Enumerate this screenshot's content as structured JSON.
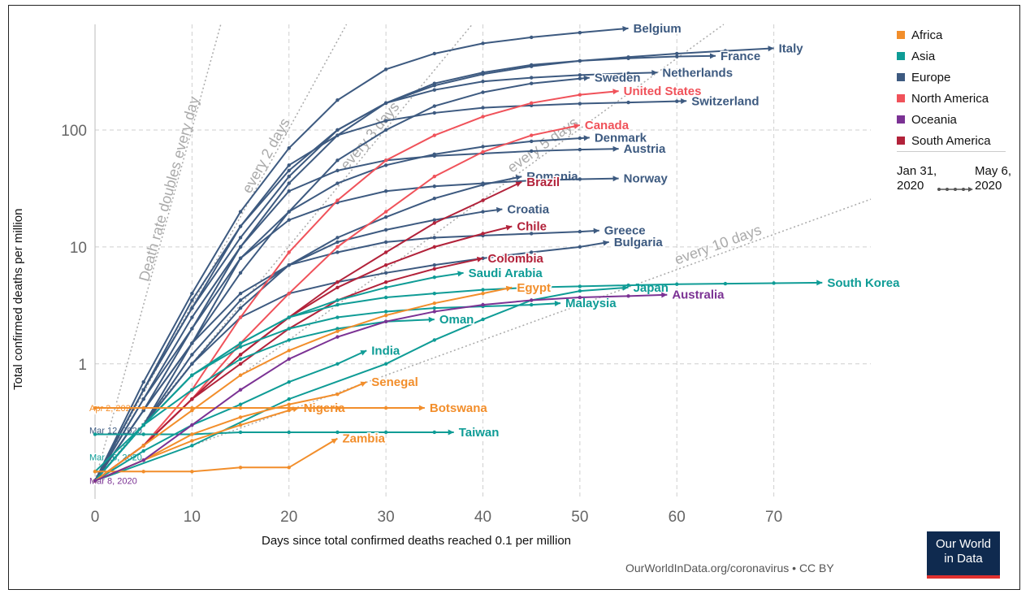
{
  "labels": {
    "ylabel": "Total confirmed deaths per million",
    "xlabel": "Days since total confirmed deaths reached 0.1 per million",
    "source": "OurWorldInData.org/coronavirus • CC BY",
    "logo_line1": "Our World",
    "logo_line2": "in Data"
  },
  "legend": [
    {
      "label": "Africa",
      "color": "#f28e2b"
    },
    {
      "label": "Asia",
      "color": "#0f9c96"
    },
    {
      "label": "Europe",
      "color": "#3d5a80"
    },
    {
      "label": "North America",
      "color": "#f0525a"
    },
    {
      "label": "Oceania",
      "color": "#7b3294"
    },
    {
      "label": "South America",
      "color": "#b2223a"
    }
  ],
  "timeline": {
    "start": "Jan 31, 2020",
    "end": "May 6, 2020"
  },
  "chart_data": {
    "type": "line",
    "yscale": "log",
    "xlim": [
      0,
      80
    ],
    "ylim": [
      0.07,
      800
    ],
    "x_ticks": [
      0,
      10,
      20,
      30,
      40,
      50,
      60,
      70
    ],
    "y_ticks": [
      {
        "v": 1,
        "label": "1"
      },
      {
        "v": 10,
        "label": "10"
      },
      {
        "v": 100,
        "label": "100"
      }
    ],
    "guides": [
      {
        "label": "Death rate doubles every day",
        "doubling": 1
      },
      {
        "label": "every 2 days",
        "doubling": 2
      },
      {
        "label": "every 3 days",
        "doubling": 3
      },
      {
        "label": "every 5 days",
        "doubling": 5
      },
      {
        "label": "every 10 days",
        "doubling": 10
      }
    ],
    "start_labels": [
      {
        "text": "Apr 2, 2020",
        "y": 0.42,
        "region": "Africa"
      },
      {
        "text": "Mar 12, 2020",
        "y": 0.27,
        "region": "Europe"
      },
      {
        "text": "Mar 16, 2020",
        "y": 0.16,
        "region": "Asia"
      },
      {
        "text": "Mar 8, 2020",
        "y": 0.1,
        "region": "Oceania"
      }
    ],
    "series": [
      {
        "name": "Belgium",
        "region": "Europe",
        "x": [
          0,
          5,
          10,
          15,
          20,
          25,
          30,
          35,
          40,
          45,
          50,
          55
        ],
        "y": [
          0.1,
          0.7,
          4,
          20,
          70,
          180,
          330,
          450,
          550,
          620,
          680,
          740
        ]
      },
      {
        "name": "Italy",
        "region": "Europe",
        "x": [
          0,
          5,
          10,
          15,
          20,
          25,
          30,
          35,
          40,
          45,
          50,
          55,
          60,
          65,
          70
        ],
        "y": [
          0.1,
          0.6,
          3.5,
          15,
          45,
          100,
          170,
          240,
          300,
          350,
          390,
          420,
          450,
          475,
          500
        ]
      },
      {
        "name": "France",
        "region": "Europe",
        "x": [
          0,
          5,
          10,
          15,
          20,
          25,
          30,
          35,
          40,
          45,
          50,
          55,
          60,
          64
        ],
        "y": [
          0.1,
          0.5,
          2.5,
          10,
          35,
          90,
          170,
          250,
          310,
          360,
          390,
          410,
          425,
          430
        ]
      },
      {
        "name": "Netherlands",
        "region": "Europe",
        "x": [
          0,
          5,
          10,
          15,
          20,
          25,
          30,
          35,
          40,
          45,
          50,
          55,
          58
        ],
        "y": [
          0.1,
          0.6,
          3,
          12,
          40,
          100,
          170,
          220,
          260,
          280,
          295,
          305,
          310
        ]
      },
      {
        "name": "Sweden",
        "region": "Europe",
        "x": [
          0,
          5,
          10,
          15,
          20,
          25,
          30,
          35,
          40,
          45,
          50,
          51
        ],
        "y": [
          0.1,
          0.4,
          1.5,
          6,
          20,
          55,
          100,
          160,
          210,
          250,
          275,
          280
        ]
      },
      {
        "name": "Switzerland",
        "region": "Europe",
        "x": [
          0,
          5,
          10,
          15,
          20,
          25,
          30,
          35,
          40,
          45,
          50,
          55,
          60,
          61
        ],
        "y": [
          0.1,
          0.6,
          3,
          15,
          50,
          90,
          120,
          140,
          155,
          162,
          168,
          172,
          176,
          177
        ]
      },
      {
        "name": "Denmark",
        "region": "Europe",
        "x": [
          0,
          5,
          10,
          15,
          20,
          25,
          30,
          35,
          40,
          45,
          50,
          51
        ],
        "y": [
          0.1,
          0.3,
          1.5,
          8,
          20,
          35,
          50,
          62,
          72,
          80,
          85,
          86
        ]
      },
      {
        "name": "Austria",
        "region": "Europe",
        "x": [
          0,
          5,
          10,
          15,
          20,
          25,
          30,
          35,
          40,
          45,
          50,
          54
        ],
        "y": [
          0.1,
          0.4,
          2,
          10,
          30,
          45,
          55,
          60,
          63,
          66,
          68,
          69
        ]
      },
      {
        "name": "Romania",
        "region": "Europe",
        "x": [
          0,
          5,
          10,
          15,
          20,
          25,
          30,
          35,
          40,
          44
        ],
        "y": [
          0.1,
          0.3,
          1,
          3,
          7,
          12,
          18,
          26,
          34,
          40
        ]
      },
      {
        "name": "Norway",
        "region": "Europe",
        "x": [
          0,
          5,
          10,
          15,
          20,
          25,
          30,
          35,
          40,
          45,
          50,
          54
        ],
        "y": [
          0.1,
          0.5,
          2,
          8,
          17,
          24,
          30,
          33,
          35,
          37,
          38,
          38.5
        ]
      },
      {
        "name": "Croatia",
        "region": "Europe",
        "x": [
          0,
          5,
          10,
          15,
          20,
          25,
          30,
          35,
          40,
          42
        ],
        "y": [
          0.1,
          0.3,
          1.2,
          3.5,
          7,
          11,
          14,
          17,
          20,
          21
        ]
      },
      {
        "name": "Greece",
        "region": "Europe",
        "x": [
          0,
          5,
          10,
          15,
          20,
          25,
          30,
          35,
          40,
          45,
          50,
          52
        ],
        "y": [
          0.1,
          0.4,
          1.5,
          4,
          7,
          9,
          11,
          12,
          12.5,
          13,
          13.5,
          13.8
        ]
      },
      {
        "name": "Bulgaria",
        "region": "Europe",
        "x": [
          0,
          5,
          10,
          15,
          20,
          25,
          30,
          35,
          40,
          45,
          50,
          53
        ],
        "y": [
          0.1,
          0.3,
          1,
          2.5,
          4,
          5,
          6,
          7,
          8,
          9,
          10,
          11
        ]
      },
      {
        "name": "United States",
        "region": "North America",
        "x": [
          0,
          5,
          10,
          15,
          20,
          25,
          30,
          35,
          40,
          45,
          50,
          54
        ],
        "y": [
          0.1,
          0.2,
          0.6,
          2.5,
          9,
          25,
          55,
          90,
          130,
          170,
          200,
          215
        ]
      },
      {
        "name": "Canada",
        "region": "North America",
        "x": [
          0,
          5,
          10,
          15,
          20,
          25,
          30,
          35,
          40,
          45,
          50
        ],
        "y": [
          0.1,
          0.2,
          0.5,
          1.5,
          4,
          10,
          20,
          40,
          65,
          90,
          110
        ]
      },
      {
        "name": "Brazil",
        "region": "South America",
        "x": [
          0,
          5,
          10,
          15,
          20,
          25,
          30,
          35,
          40,
          44
        ],
        "y": [
          0.1,
          0.2,
          0.5,
          1.2,
          2.5,
          5,
          9,
          16,
          25,
          36
        ]
      },
      {
        "name": "Chile",
        "region": "South America",
        "x": [
          0,
          5,
          10,
          15,
          20,
          25,
          30,
          35,
          40,
          43
        ],
        "y": [
          0.1,
          0.2,
          0.5,
          1.2,
          2.5,
          4.5,
          7,
          10,
          13,
          15
        ]
      },
      {
        "name": "Colombia",
        "region": "South America",
        "x": [
          0,
          5,
          10,
          15,
          20,
          25,
          30,
          35,
          40
        ],
        "y": [
          0.1,
          0.2,
          0.5,
          1,
          2,
          3.5,
          5,
          6.5,
          8
        ]
      },
      {
        "name": "Saudi Arabia",
        "region": "Asia",
        "x": [
          0,
          5,
          10,
          15,
          20,
          25,
          30,
          35,
          38
        ],
        "y": [
          0.12,
          0.3,
          0.8,
          1.5,
          2.5,
          3.5,
          4.5,
          5.5,
          6
        ]
      },
      {
        "name": "Malaysia",
        "region": "Asia",
        "x": [
          0,
          5,
          10,
          15,
          20,
          25,
          30,
          35,
          40,
          45,
          48
        ],
        "y": [
          0.1,
          0.3,
          0.8,
          1.4,
          2,
          2.5,
          2.8,
          3,
          3.1,
          3.2,
          3.3
        ]
      },
      {
        "name": "Japan",
        "region": "Asia",
        "x": [
          0,
          10,
          20,
          30,
          35,
          40,
          45,
          50,
          55
        ],
        "y": [
          0.1,
          0.2,
          0.5,
          1,
          1.6,
          2.4,
          3.5,
          4.2,
          4.5
        ]
      },
      {
        "name": "South Korea",
        "region": "Asia",
        "x": [
          0,
          5,
          10,
          15,
          20,
          25,
          30,
          35,
          40,
          45,
          50,
          55,
          60,
          65,
          70,
          75
        ],
        "y": [
          0.1,
          0.3,
          0.8,
          1.5,
          2.5,
          3.2,
          3.7,
          4,
          4.3,
          4.5,
          4.6,
          4.7,
          4.8,
          4.85,
          4.9,
          4.95
        ]
      },
      {
        "name": "Oman",
        "region": "Asia",
        "x": [
          0,
          5,
          10,
          15,
          20,
          25,
          30,
          35
        ],
        "y": [
          0.1,
          0.3,
          0.6,
          1.1,
          1.6,
          2,
          2.3,
          2.4
        ]
      },
      {
        "name": "India",
        "region": "Asia",
        "x": [
          0,
          5,
          10,
          15,
          20,
          25,
          28
        ],
        "y": [
          0.1,
          0.18,
          0.3,
          0.45,
          0.7,
          1,
          1.3
        ]
      },
      {
        "name": "Taiwan",
        "region": "Asia",
        "x": [
          0,
          5,
          10,
          15,
          20,
          25,
          30,
          35,
          37
        ],
        "y": [
          0.25,
          0.25,
          0.25,
          0.26,
          0.26,
          0.26,
          0.26,
          0.26,
          0.26
        ]
      },
      {
        "name": "Egypt",
        "region": "Africa",
        "x": [
          0,
          5,
          10,
          15,
          20,
          25,
          30,
          35,
          40,
          43
        ],
        "y": [
          0.1,
          0.2,
          0.4,
          0.8,
          1.3,
          1.9,
          2.6,
          3.3,
          4,
          4.5
        ]
      },
      {
        "name": "Senegal",
        "region": "Africa",
        "x": [
          0,
          5,
          10,
          15,
          20,
          25,
          28
        ],
        "y": [
          0.1,
          0.15,
          0.25,
          0.35,
          0.45,
          0.55,
          0.7
        ]
      },
      {
        "name": "Nigeria",
        "region": "Africa",
        "x": [
          0,
          5,
          10,
          15,
          20,
          21
        ],
        "y": [
          0.1,
          0.15,
          0.22,
          0.3,
          0.4,
          0.42
        ]
      },
      {
        "name": "Botswana",
        "region": "Africa",
        "x": [
          0,
          5,
          10,
          15,
          20,
          25,
          30,
          34
        ],
        "y": [
          0.42,
          0.42,
          0.42,
          0.42,
          0.42,
          0.42,
          0.42,
          0.42
        ]
      },
      {
        "name": "Zambia",
        "region": "Africa",
        "x": [
          0,
          5,
          10,
          15,
          20,
          25
        ],
        "y": [
          0.12,
          0.12,
          0.12,
          0.13,
          0.13,
          0.23
        ]
      },
      {
        "name": "Australia",
        "region": "Oceania",
        "x": [
          0,
          5,
          10,
          15,
          20,
          25,
          30,
          35,
          40,
          45,
          50,
          55,
          59
        ],
        "y": [
          0.1,
          0.15,
          0.3,
          0.6,
          1.1,
          1.7,
          2.3,
          2.8,
          3.2,
          3.5,
          3.7,
          3.8,
          3.9
        ]
      }
    ]
  }
}
